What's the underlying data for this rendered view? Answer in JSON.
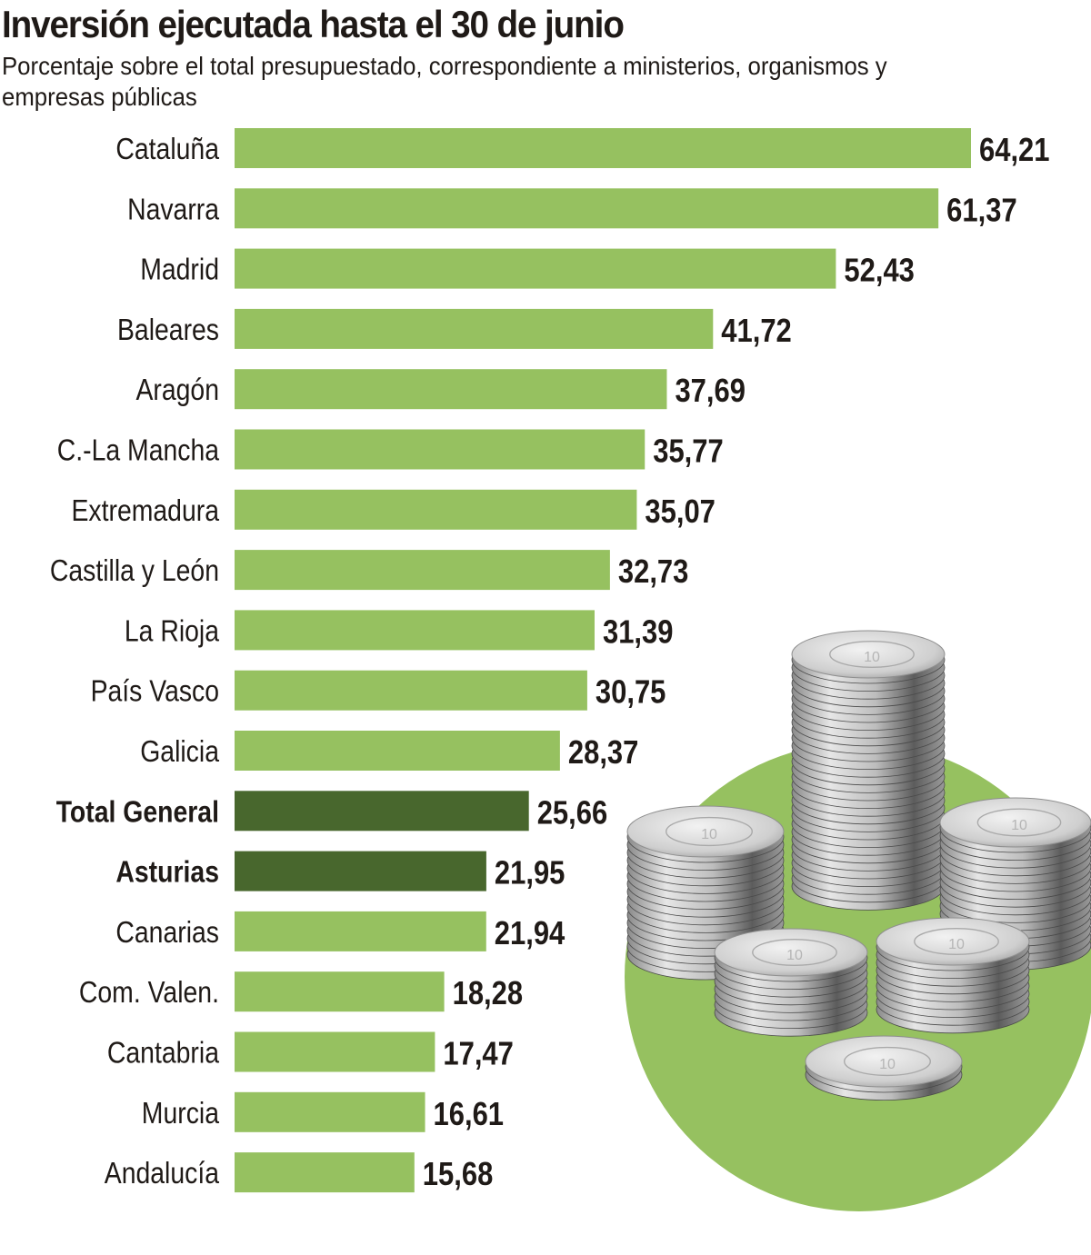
{
  "header": {
    "title": "Inversión ejecutada hasta el 30 de junio",
    "subtitle": "Porcentaje sobre el total presupuestado, correspondiente a ministerios, organismos y empresas públicas"
  },
  "colors": {
    "bar": "#96c160",
    "bar_highlight": "#48672d",
    "text": "#1f1a17",
    "decor_circle": "#96c160"
  },
  "illustration": {
    "icon": "coin-stacks-icon",
    "coin_face_text": "10"
  },
  "chart_data": {
    "type": "bar",
    "orientation": "horizontal",
    "title": "Inversión ejecutada hasta el 30 de junio",
    "subtitle": "Porcentaje sobre el total presupuestado, correspondiente a ministerios, organismos y empresas públicas",
    "xlabel": "",
    "ylabel": "",
    "unit": "%",
    "decimal_separator": ",",
    "xlim": [
      0,
      64.21
    ],
    "grid": false,
    "legend": "none",
    "categories": [
      "Cataluña",
      "Navarra",
      "Madrid",
      "Baleares",
      "Aragón",
      "C.-La Mancha",
      "Extremadura",
      "Castilla y León",
      "La Rioja",
      "País Vasco",
      "Galicia",
      "Total General",
      "Asturias",
      "Canarias",
      "Com. Valen.",
      "Cantabria",
      "Murcia",
      "Andalucía"
    ],
    "values": [
      64.21,
      61.37,
      52.43,
      41.72,
      37.69,
      35.77,
      35.07,
      32.73,
      31.39,
      30.75,
      28.37,
      25.66,
      21.95,
      21.94,
      18.28,
      17.47,
      16.61,
      15.68
    ],
    "value_labels": [
      "64,21",
      "61,37",
      "52,43",
      "41,72",
      "37,69",
      "35,77",
      "35,07",
      "32,73",
      "31,39",
      "30,75",
      "28,37",
      "25,66",
      "21,95",
      "21,94",
      "18,28",
      "17,47",
      "16,61",
      "15,68"
    ],
    "highlighted": [
      "Total General",
      "Asturias"
    ]
  }
}
